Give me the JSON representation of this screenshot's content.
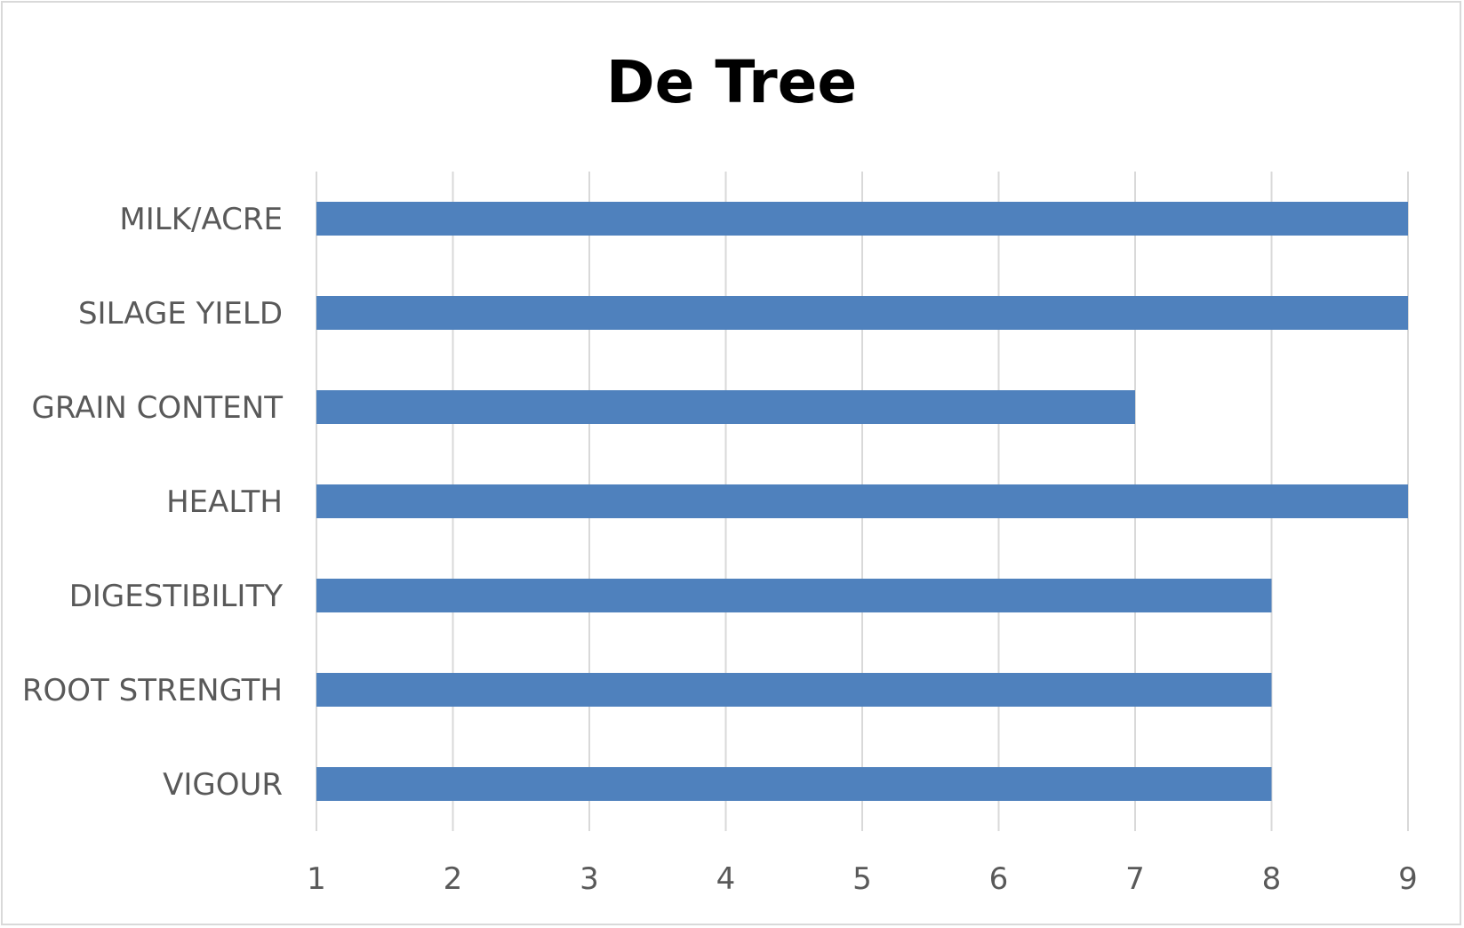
{
  "chart_data": {
    "type": "bar",
    "orientation": "horizontal",
    "title": "De Tree",
    "categories": [
      "MILK/ACRE",
      "SILAGE YIELD",
      "GRAIN CONTENT",
      "HEALTH",
      "DIGESTIBILITY",
      "ROOT STRENGTH",
      "VIGOUR"
    ],
    "values": [
      9,
      9,
      7,
      9,
      8,
      8,
      8
    ],
    "xlim": [
      1,
      9
    ],
    "xticks": [
      "1",
      "2",
      "3",
      "4",
      "5",
      "6",
      "7",
      "8",
      "9"
    ],
    "xlabel": "",
    "ylabel": "",
    "grid": "vertical",
    "legend": "none",
    "bar_color": "#4f81bd",
    "grid_color": "#d9d9d9",
    "label_color": "#595959"
  }
}
